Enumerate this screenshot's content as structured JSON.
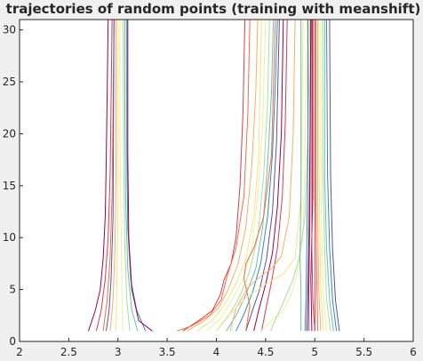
{
  "chart_data": {
    "type": "line",
    "title": "trajectories of random points (training with meanshift)",
    "xlabel": "",
    "ylabel": "",
    "xlim": [
      2,
      6
    ],
    "ylim": [
      0,
      31
    ],
    "x_ticks": [
      "2",
      "2.5",
      "3",
      "3.5",
      "4",
      "4.5",
      "5",
      "5.5",
      "6"
    ],
    "y_ticks": [
      "0",
      "5",
      "10",
      "15",
      "20",
      "25",
      "30"
    ],
    "grid": false,
    "legend": "none",
    "colors": [
      "#9e0142",
      "#d53e4f",
      "#f46d43",
      "#fdae61",
      "#fee08b",
      "#e6f598",
      "#abdda4",
      "#66c2a5",
      "#3288bd",
      "#5e4fa2"
    ],
    "series": [
      {
        "points": [
          [
            2.7,
            1
          ],
          [
            2.77,
            3
          ],
          [
            2.82,
            5
          ],
          [
            2.85,
            8
          ],
          [
            2.87,
            12
          ],
          [
            2.88,
            17
          ],
          [
            2.89,
            24
          ],
          [
            2.9,
            31
          ]
        ]
      },
      {
        "points": [
          [
            2.78,
            1
          ],
          [
            2.83,
            3
          ],
          [
            2.87,
            6
          ],
          [
            2.9,
            10
          ],
          [
            2.92,
            16
          ],
          [
            2.93,
            23
          ],
          [
            2.94,
            31
          ]
        ]
      },
      {
        "points": [
          [
            2.85,
            1
          ],
          [
            2.89,
            4
          ],
          [
            2.92,
            8
          ],
          [
            2.94,
            14
          ],
          [
            2.95,
            22
          ],
          [
            2.96,
            31
          ]
        ]
      },
      {
        "points": [
          [
            2.92,
            1
          ],
          [
            2.95,
            4
          ],
          [
            2.97,
            9
          ],
          [
            2.98,
            16
          ],
          [
            2.98,
            31
          ]
        ]
      },
      {
        "points": [
          [
            2.98,
            1
          ],
          [
            2.99,
            6
          ],
          [
            3.0,
            14
          ],
          [
            3.0,
            31
          ]
        ]
      },
      {
        "points": [
          [
            3.05,
            1
          ],
          [
            3.04,
            5
          ],
          [
            3.03,
            12
          ],
          [
            3.02,
            20
          ],
          [
            3.02,
            31
          ]
        ]
      },
      {
        "points": [
          [
            3.12,
            1
          ],
          [
            3.09,
            4
          ],
          [
            3.07,
            9
          ],
          [
            3.06,
            16
          ],
          [
            3.05,
            31
          ]
        ]
      },
      {
        "points": [
          [
            3.2,
            1
          ],
          [
            3.14,
            3
          ],
          [
            3.1,
            7
          ],
          [
            3.08,
            13
          ],
          [
            3.07,
            22
          ],
          [
            3.07,
            31
          ]
        ]
      },
      {
        "points": [
          [
            3.28,
            1
          ],
          [
            3.19,
            3
          ],
          [
            3.13,
            6
          ],
          [
            3.1,
            11
          ],
          [
            3.09,
            19
          ],
          [
            3.09,
            31
          ]
        ]
      },
      {
        "points": [
          [
            2.88,
            1
          ],
          [
            2.91,
            3
          ],
          [
            2.93,
            6
          ],
          [
            2.95,
            12
          ],
          [
            2.96,
            31
          ]
        ]
      },
      {
        "points": [
          [
            3.35,
            1
          ],
          [
            3.21,
            2
          ],
          [
            3.14,
            5
          ],
          [
            3.11,
            10
          ],
          [
            3.1,
            18
          ],
          [
            3.1,
            31
          ]
        ]
      },
      {
        "points": [
          [
            3.66,
            1
          ],
          [
            3.82,
            2
          ],
          [
            3.96,
            3
          ],
          [
            4.04,
            4.5
          ],
          [
            4.08,
            6
          ],
          [
            4.15,
            7.5
          ],
          [
            4.2,
            10
          ],
          [
            4.24,
            15
          ],
          [
            4.27,
            22
          ],
          [
            4.29,
            31
          ]
        ]
      },
      {
        "points": [
          [
            3.6,
            1
          ],
          [
            3.75,
            1.5
          ],
          [
            3.93,
            2.5
          ],
          [
            4.05,
            4
          ],
          [
            4.1,
            6
          ],
          [
            4.2,
            9
          ],
          [
            4.28,
            14
          ],
          [
            4.32,
            22
          ],
          [
            4.34,
            31
          ]
        ]
      },
      {
        "points": [
          [
            3.7,
            1
          ],
          [
            3.88,
            2
          ],
          [
            4.02,
            3.2
          ],
          [
            4.12,
            5
          ],
          [
            4.22,
            7.5
          ],
          [
            4.3,
            11
          ],
          [
            4.36,
            17
          ],
          [
            4.4,
            24
          ],
          [
            4.42,
            31
          ]
        ]
      },
      {
        "points": [
          [
            3.8,
            1
          ],
          [
            3.96,
            2
          ],
          [
            4.08,
            3.5
          ],
          [
            4.2,
            5.5
          ],
          [
            4.3,
            8
          ],
          [
            4.38,
            12
          ],
          [
            4.43,
            18
          ],
          [
            4.46,
            31
          ]
        ]
      },
      {
        "points": [
          [
            3.9,
            1
          ],
          [
            4.04,
            2.2
          ],
          [
            4.16,
            4
          ],
          [
            4.27,
            6
          ],
          [
            4.36,
            9
          ],
          [
            4.42,
            14
          ],
          [
            4.47,
            21
          ],
          [
            4.5,
            31
          ]
        ]
      },
      {
        "points": [
          [
            4.0,
            1
          ],
          [
            4.12,
            2.4
          ],
          [
            4.23,
            4.2
          ],
          [
            4.33,
            6.5
          ],
          [
            4.42,
            10
          ],
          [
            4.48,
            16
          ],
          [
            4.52,
            23
          ],
          [
            4.54,
            31
          ]
        ]
      },
      {
        "points": [
          [
            4.1,
            1
          ],
          [
            4.2,
            2.5
          ],
          [
            4.3,
            4.5
          ],
          [
            4.4,
            7
          ],
          [
            4.47,
            11
          ],
          [
            4.52,
            17
          ],
          [
            4.56,
            24
          ],
          [
            4.58,
            31
          ]
        ]
      },
      {
        "points": [
          [
            4.2,
            1
          ],
          [
            4.28,
            2.6
          ],
          [
            4.37,
            4.8
          ],
          [
            4.45,
            7.5
          ],
          [
            4.52,
            12
          ],
          [
            4.57,
            18
          ],
          [
            4.6,
            25
          ],
          [
            4.62,
            31
          ]
        ]
      },
      {
        "points": [
          [
            4.3,
            1
          ],
          [
            4.36,
            2.8
          ],
          [
            4.44,
            5
          ],
          [
            4.51,
            8
          ],
          [
            4.57,
            12.5
          ],
          [
            4.61,
            19
          ],
          [
            4.64,
            31
          ]
        ]
      },
      {
        "points": [
          [
            4.38,
            1
          ],
          [
            4.43,
            3
          ],
          [
            4.5,
            5.5
          ],
          [
            4.57,
            8.5
          ],
          [
            4.62,
            13
          ],
          [
            4.66,
            20
          ],
          [
            4.68,
            31
          ]
        ]
      },
      {
        "points": [
          [
            4.46,
            1
          ],
          [
            4.5,
            3
          ],
          [
            4.56,
            5.7
          ],
          [
            4.62,
            9
          ],
          [
            4.67,
            14
          ],
          [
            4.7,
            21
          ],
          [
            4.72,
            31
          ]
        ]
      },
      {
        "points": [
          [
            4.3,
            1
          ],
          [
            4.34,
            3.5
          ],
          [
            4.28,
            6
          ],
          [
            4.3,
            7.5
          ],
          [
            4.38,
            9
          ],
          [
            4.48,
            12
          ],
          [
            4.56,
            18
          ],
          [
            4.6,
            31
          ]
        ]
      },
      {
        "points": [
          [
            4.14,
            1
          ],
          [
            4.2,
            3.2
          ],
          [
            4.32,
            5.2
          ],
          [
            4.44,
            6.2
          ],
          [
            4.56,
            7
          ],
          [
            4.66,
            8.2
          ],
          [
            4.74,
            12
          ],
          [
            4.78,
            20
          ],
          [
            4.8,
            31
          ]
        ]
      },
      {
        "points": [
          [
            4.0,
            1
          ],
          [
            4.12,
            2.5
          ],
          [
            4.3,
            4.2
          ],
          [
            4.5,
            5.5
          ],
          [
            4.68,
            6.5
          ],
          [
            4.8,
            8
          ],
          [
            4.86,
            14
          ],
          [
            4.88,
            31
          ]
        ]
      },
      {
        "points": [
          [
            4.45,
            1
          ],
          [
            4.56,
            2
          ],
          [
            4.68,
            3
          ],
          [
            4.76,
            4.5
          ],
          [
            4.82,
            6.5
          ],
          [
            4.88,
            10
          ],
          [
            4.9,
            18
          ],
          [
            4.92,
            31
          ]
        ]
      },
      {
        "points": [
          [
            4.55,
            1
          ],
          [
            4.62,
            2.5
          ],
          [
            4.7,
            4.2
          ],
          [
            4.78,
            6
          ],
          [
            4.84,
            8
          ],
          [
            4.9,
            12
          ],
          [
            4.93,
            20
          ],
          [
            4.95,
            31
          ]
        ]
      },
      {
        "points": [
          [
            4.86,
            1
          ],
          [
            4.86,
            5
          ],
          [
            4.85,
            8
          ],
          [
            4.86,
            14
          ],
          [
            4.86,
            31
          ]
        ]
      },
      {
        "points": [
          [
            4.9,
            1
          ],
          [
            4.91,
            4
          ],
          [
            4.92,
            10
          ],
          [
            4.93,
            18
          ],
          [
            4.93,
            31
          ]
        ]
      },
      {
        "points": [
          [
            4.94,
            1
          ],
          [
            4.94,
            5
          ],
          [
            4.95,
            12
          ],
          [
            4.96,
            31
          ]
        ]
      },
      {
        "points": [
          [
            4.97,
            1
          ],
          [
            4.96,
            6
          ],
          [
            4.98,
            14
          ],
          [
            4.98,
            31
          ]
        ]
      },
      {
        "points": [
          [
            5.0,
            1
          ],
          [
            5.0,
            7
          ],
          [
            5.0,
            15
          ],
          [
            5.0,
            31
          ]
        ]
      },
      {
        "points": [
          [
            5.03,
            1
          ],
          [
            5.02,
            6
          ],
          [
            5.01,
            14
          ],
          [
            5.01,
            31
          ]
        ]
      },
      {
        "points": [
          [
            5.06,
            1
          ],
          [
            5.04,
            5
          ],
          [
            5.03,
            12
          ],
          [
            5.03,
            31
          ]
        ]
      },
      {
        "points": [
          [
            5.09,
            1
          ],
          [
            5.06,
            5
          ],
          [
            5.05,
            11
          ],
          [
            5.04,
            20
          ],
          [
            5.04,
            31
          ]
        ]
      },
      {
        "points": [
          [
            5.12,
            1
          ],
          [
            5.09,
            4
          ],
          [
            5.07,
            10
          ],
          [
            5.06,
            18
          ],
          [
            5.06,
            31
          ]
        ]
      },
      {
        "points": [
          [
            5.16,
            1
          ],
          [
            5.12,
            4
          ],
          [
            5.1,
            9
          ],
          [
            5.08,
            17
          ],
          [
            5.08,
            31
          ]
        ]
      },
      {
        "points": [
          [
            5.19,
            1
          ],
          [
            5.15,
            4
          ],
          [
            5.12,
            9
          ],
          [
            5.1,
            16
          ],
          [
            5.1,
            31
          ]
        ]
      },
      {
        "points": [
          [
            5.22,
            1
          ],
          [
            5.18,
            4
          ],
          [
            5.15,
            9
          ],
          [
            5.13,
            16
          ],
          [
            5.12,
            31
          ]
        ]
      },
      {
        "points": [
          [
            5.25,
            1
          ],
          [
            5.21,
            4
          ],
          [
            5.18,
            9
          ],
          [
            5.16,
            16
          ],
          [
            5.15,
            31
          ]
        ]
      },
      {
        "points": [
          [
            4.92,
            1
          ],
          [
            4.93,
            5
          ],
          [
            4.94,
            10
          ],
          [
            4.95,
            18
          ],
          [
            4.96,
            31
          ]
        ]
      },
      {
        "points": [
          [
            5.0,
            1
          ],
          [
            4.98,
            4
          ],
          [
            4.97,
            9
          ],
          [
            4.97,
            31
          ]
        ]
      }
    ]
  }
}
